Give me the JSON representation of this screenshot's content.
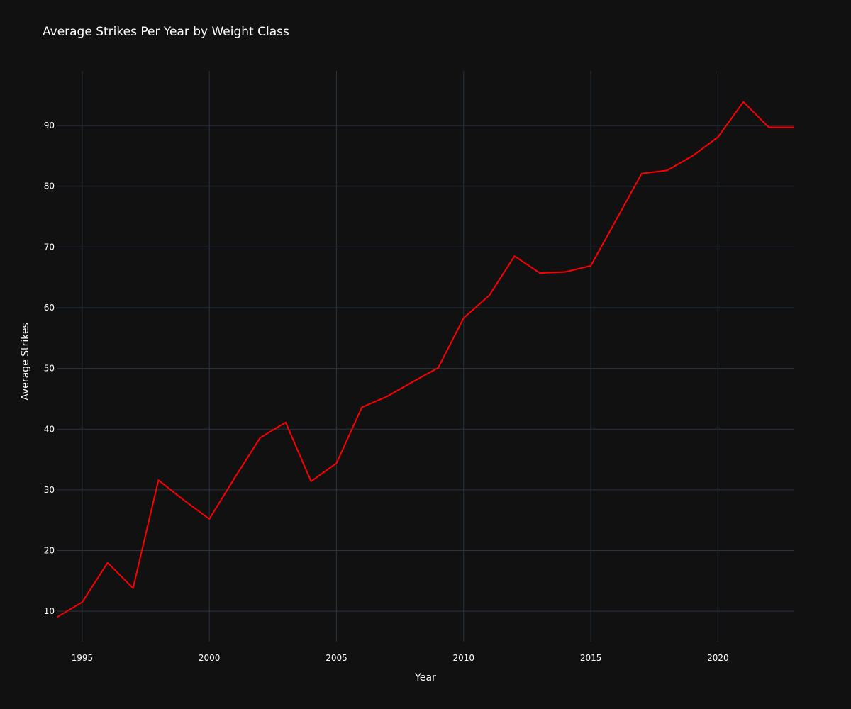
{
  "chart_data": {
    "type": "line",
    "title": "Average Strikes Per Year by Weight Class",
    "xlabel": "Year",
    "ylabel": "Average Strikes",
    "xlim": [
      1994,
      2023
    ],
    "ylim": [
      5,
      99
    ],
    "x_ticks": [
      1995,
      2000,
      2005,
      2010,
      2015,
      2020
    ],
    "y_ticks": [
      10,
      20,
      30,
      40,
      50,
      60,
      70,
      80,
      90
    ],
    "grid": true,
    "legend": "none",
    "background_color": "#111111",
    "grid_color": "#283442",
    "series": [
      {
        "color": "#ff0000",
        "x": [
          1994,
          1995,
          1996,
          1997,
          1998,
          1999,
          2000,
          2001,
          2002,
          2003,
          2004,
          2005,
          2006,
          2007,
          2008,
          2009,
          2010,
          2011,
          2012,
          2013,
          2014,
          2015,
          2016,
          2017,
          2018,
          2019,
          2020,
          2021,
          2022,
          2023
        ],
        "values": [
          9.0,
          11.5,
          18.0,
          13.8,
          31.6,
          28.3,
          25.2,
          32.0,
          38.6,
          41.1,
          31.4,
          34.4,
          43.6,
          45.4,
          47.8,
          50.1,
          58.3,
          62.0,
          68.5,
          65.7,
          65.9,
          66.9,
          74.5,
          82.1,
          82.6,
          85.0,
          88.1,
          93.9,
          89.7,
          89.7
        ]
      }
    ]
  }
}
